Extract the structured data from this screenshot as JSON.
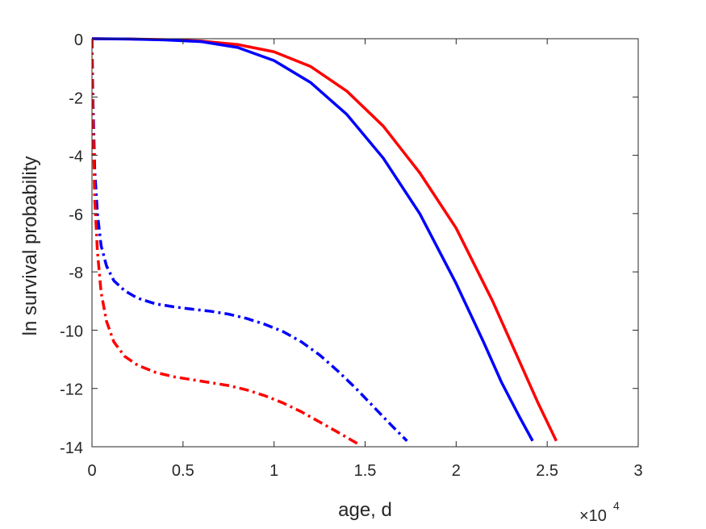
{
  "chart_data": {
    "type": "line",
    "title": "",
    "xlabel": "age, d",
    "ylabel": "ln survival probability",
    "x_exponent_label": {
      "base": "×10",
      "exponent": "4"
    },
    "xlim": [
      0,
      30000
    ],
    "ylim": [
      -14,
      0
    ],
    "x_ticks": [
      0,
      5000,
      10000,
      15000,
      20000,
      25000,
      30000
    ],
    "x_tick_labels": [
      "0",
      "0.5",
      "1",
      "1.5",
      "2",
      "2.5",
      "3"
    ],
    "y_ticks": [
      0,
      -2,
      -4,
      -6,
      -8,
      -10,
      -12,
      -14
    ],
    "y_tick_labels": [
      "0",
      "-2",
      "-4",
      "-6",
      "-8",
      "-10",
      "-12",
      "-14"
    ],
    "grid": false,
    "legend": "none",
    "series": [
      {
        "color": "#ff0000",
        "style": "solid",
        "x": [
          0,
          2000,
          4000,
          6000,
          8000,
          10000,
          12000,
          14000,
          16000,
          18000,
          20000,
          22000,
          23500,
          24500,
          25500
        ],
        "y": [
          0,
          -0.01,
          -0.03,
          -0.08,
          -0.2,
          -0.45,
          -0.95,
          -1.8,
          -3.0,
          -4.6,
          -6.5,
          -9.0,
          -11.1,
          -12.5,
          -13.8
        ]
      },
      {
        "color": "#0000ff",
        "style": "solid",
        "x": [
          0,
          2000,
          4000,
          6000,
          8000,
          10000,
          12000,
          14000,
          16000,
          18000,
          20000,
          21500,
          22500,
          23500,
          24200
        ],
        "y": [
          0,
          -0.01,
          -0.04,
          -0.1,
          -0.3,
          -0.75,
          -1.5,
          -2.6,
          -4.1,
          -6.0,
          -8.4,
          -10.4,
          -11.8,
          -13.0,
          -13.8
        ]
      },
      {
        "color": "#0000ff",
        "style": "dashdot",
        "x": [
          0,
          50,
          150,
          300,
          500,
          800,
          1200,
          1800,
          2500,
          3500,
          4500,
          5500,
          6500,
          7500,
          8500,
          9500,
          10500,
          11500,
          12500,
          13500,
          14500,
          15500,
          16500,
          17300
        ],
        "y": [
          0,
          -2.0,
          -4.5,
          -6.0,
          -7.1,
          -7.8,
          -8.3,
          -8.65,
          -8.9,
          -9.1,
          -9.2,
          -9.28,
          -9.35,
          -9.45,
          -9.6,
          -9.8,
          -10.05,
          -10.4,
          -10.85,
          -11.4,
          -12.0,
          -12.65,
          -13.3,
          -13.8
        ]
      },
      {
        "color": "#ff0000",
        "style": "dashdot",
        "x": [
          0,
          50,
          150,
          300,
          500,
          800,
          1200,
          1800,
          2500,
          3500,
          4500,
          5500,
          6500,
          7500,
          8500,
          9500,
          10500,
          11500,
          12500,
          13500,
          14600
        ],
        "y": [
          0,
          -2.5,
          -5.5,
          -7.3,
          -8.7,
          -9.7,
          -10.4,
          -10.9,
          -11.2,
          -11.45,
          -11.6,
          -11.7,
          -11.8,
          -11.9,
          -12.05,
          -12.25,
          -12.5,
          -12.8,
          -13.15,
          -13.5,
          -13.9
        ]
      }
    ]
  }
}
